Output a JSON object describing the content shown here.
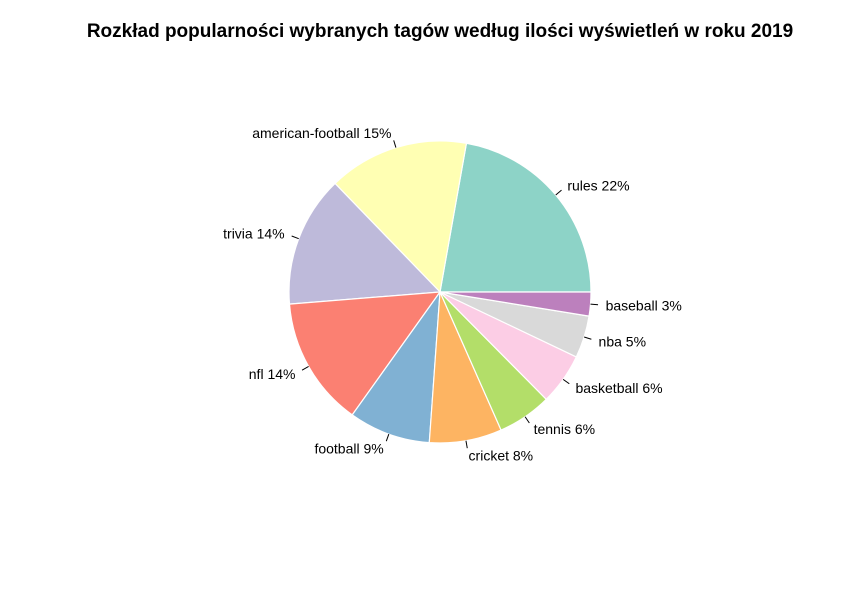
{
  "chart_data": {
    "type": "pie",
    "title": "Rozkład popularności wybranych tagów według ilości wyświetleń w roku 2019",
    "slices": [
      {
        "label": "rules 22%",
        "value": 22.6,
        "color": "#8DD3C7"
      },
      {
        "label": "american-football 15%",
        "value": 15.3,
        "color": "#FFFFB3"
      },
      {
        "label": "trivia 14%",
        "value": 14.3,
        "color": "#BEBADA"
      },
      {
        "label": "nfl 14%",
        "value": 14.1,
        "color": "#FB8072"
      },
      {
        "label": "football 9%",
        "value": 8.9,
        "color": "#80B1D3"
      },
      {
        "label": "cricket 8%",
        "value": 7.9,
        "color": "#FDB462"
      },
      {
        "label": "tennis 6%",
        "value": 5.9,
        "color": "#B3DE69"
      },
      {
        "label": "basketball 6%",
        "value": 5.6,
        "color": "#FCCDE5"
      },
      {
        "label": "nba 5%",
        "value": 4.6,
        "color": "#D9D9D9"
      },
      {
        "label": "baseball 3%",
        "value": 2.6,
        "color": "#BC80BD"
      }
    ],
    "start_angle_deg": 0,
    "direction": "counterclockwise"
  }
}
